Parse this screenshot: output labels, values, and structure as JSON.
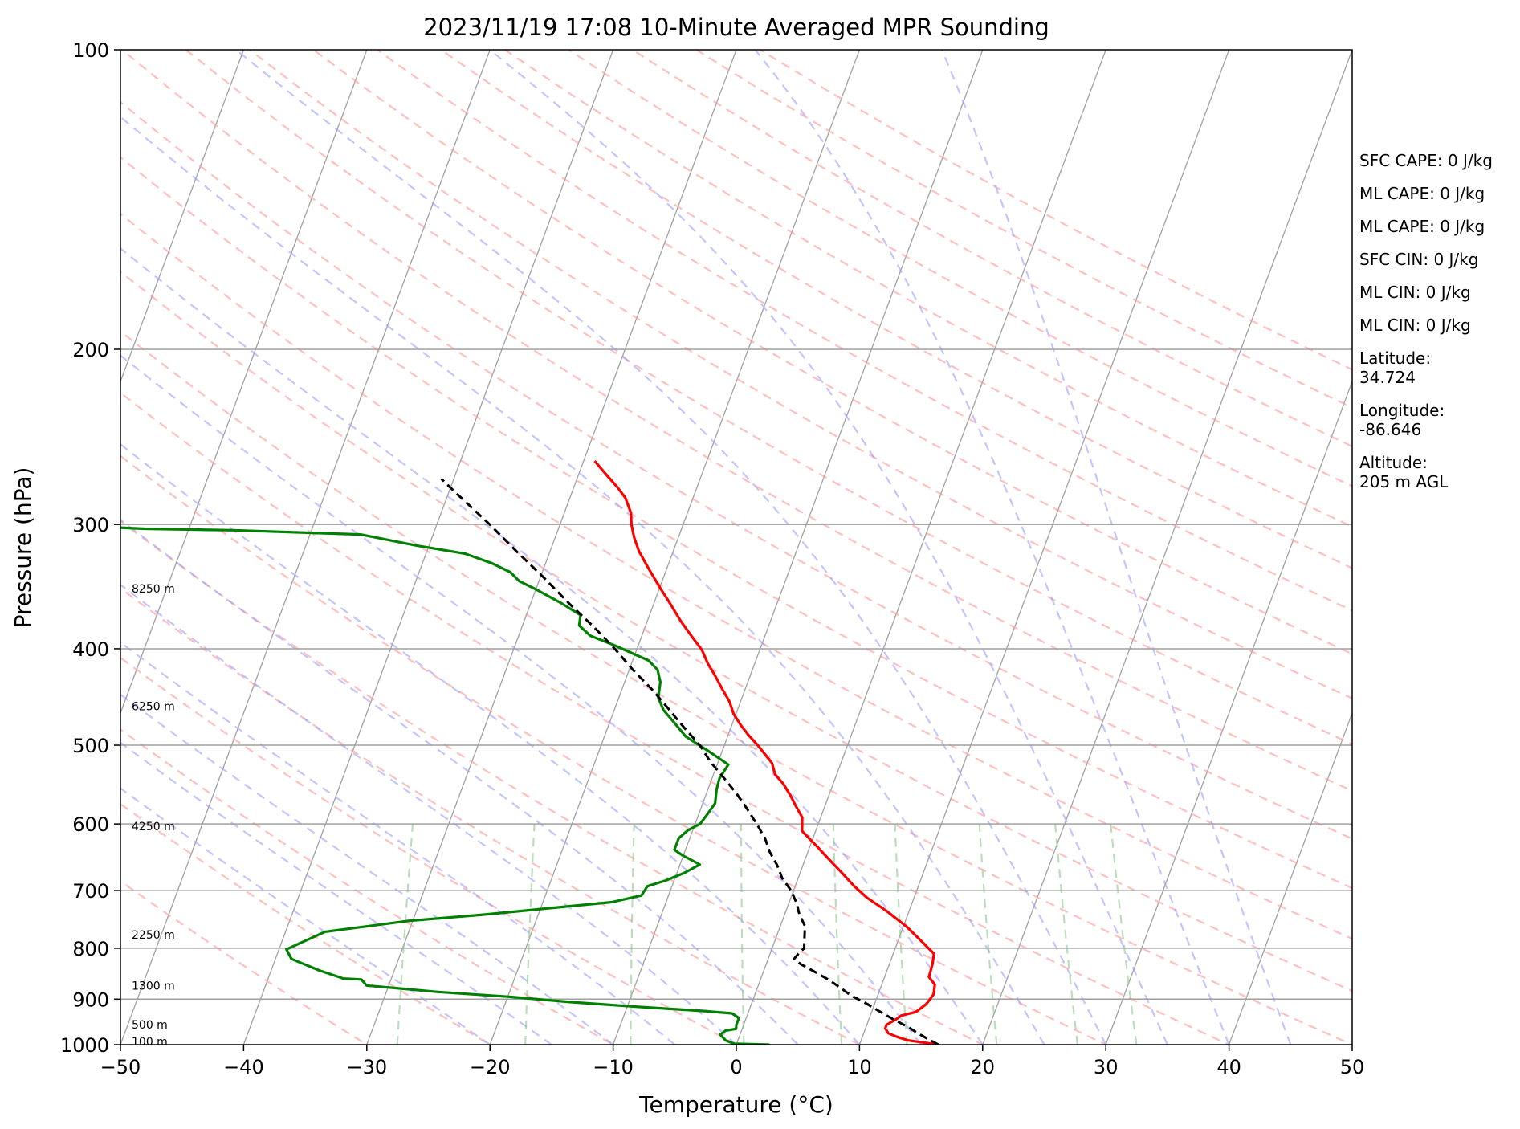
{
  "chart_data": {
    "type": "line",
    "title": "2023/11/19 17:08 10-Minute Averaged MPR Sounding",
    "xlabel": "Temperature (°C)",
    "ylabel": "Pressure (hPa)",
    "xlim": [
      -50,
      50
    ],
    "ylim": [
      1000,
      100
    ],
    "y_scale": "log",
    "x_ticks": [
      "−50",
      "−40",
      "−30",
      "−20",
      "−10",
      "0",
      "10",
      "20",
      "30",
      "40",
      "50"
    ],
    "y_ticks": [
      "1000",
      "900",
      "800",
      "700",
      "600",
      "500",
      "400",
      "300",
      "200",
      "100"
    ],
    "grid": true,
    "skew": "skew-T log-P",
    "series": [
      {
        "kind": "temperature",
        "color": "#ff0000",
        "points": [
          [
            16.4,
            1000
          ],
          [
            13.8,
            990
          ],
          [
            12.8,
            982
          ],
          [
            12.0,
            974
          ],
          [
            11.6,
            963
          ],
          [
            11.6,
            955
          ],
          [
            12.2,
            943
          ],
          [
            12.5,
            935
          ],
          [
            13.6,
            927
          ],
          [
            14.2,
            910
          ],
          [
            14.5,
            890
          ],
          [
            14.3,
            870
          ],
          [
            13.6,
            855
          ],
          [
            13.5,
            830
          ],
          [
            13.3,
            810
          ],
          [
            12.1,
            790
          ],
          [
            10.2,
            760
          ],
          [
            8.1,
            733
          ],
          [
            6.2,
            712
          ],
          [
            4.8,
            693
          ],
          [
            3.4,
            672
          ],
          [
            1.7,
            648
          ],
          [
            0.5,
            631
          ],
          [
            -1.1,
            610
          ],
          [
            -1.5,
            591
          ],
          [
            -2.4,
            575
          ],
          [
            -3.1,
            562
          ],
          [
            -4.1,
            546
          ],
          [
            -5.0,
            535
          ],
          [
            -5.6,
            521
          ],
          [
            -6.4,
            511
          ],
          [
            -7.3,
            500
          ],
          [
            -8.3,
            489
          ],
          [
            -9.3,
            477
          ],
          [
            -10.2,
            465
          ],
          [
            -10.9,
            452
          ],
          [
            -11.8,
            440
          ],
          [
            -12.9,
            425
          ],
          [
            -13.8,
            414
          ],
          [
            -14.7,
            401
          ],
          [
            -15.9,
            389
          ],
          [
            -17.3,
            375
          ],
          [
            -18.6,
            361
          ],
          [
            -20.0,
            347
          ],
          [
            -21.4,
            333
          ],
          [
            -22.8,
            319
          ],
          [
            -23.6,
            309
          ],
          [
            -24.2,
            300
          ],
          [
            -24.6,
            292
          ],
          [
            -25.5,
            282
          ],
          [
            -26.5,
            275
          ],
          [
            -27.8,
            267
          ],
          [
            -29.1,
            259
          ]
        ]
      },
      {
        "kind": "dewpoint",
        "color": "#008000",
        "points": [
          [
            2.7,
            1000
          ],
          [
            -0.2,
            998
          ],
          [
            -1.0,
            990
          ],
          [
            -1.6,
            977
          ],
          [
            -1.3,
            968
          ],
          [
            -0.5,
            964
          ],
          [
            -0.6,
            955
          ],
          [
            -0.6,
            940
          ],
          [
            -1.3,
            930
          ],
          [
            -3.7,
            925
          ],
          [
            -8.6,
            917
          ],
          [
            -14.8,
            906
          ],
          [
            -19.9,
            895
          ],
          [
            -25.8,
            885
          ],
          [
            -31.8,
            872
          ],
          [
            -32.4,
            860
          ],
          [
            -33.9,
            858
          ],
          [
            -36.1,
            842
          ],
          [
            -38.7,
            820
          ],
          [
            -39.4,
            802
          ],
          [
            -36.8,
            770
          ],
          [
            -30.4,
            751
          ],
          [
            -24.4,
            740
          ],
          [
            -19.2,
            729
          ],
          [
            -14.4,
            719
          ],
          [
            -12.2,
            708
          ],
          [
            -12.0,
            693
          ],
          [
            -10.7,
            684
          ],
          [
            -9.4,
            672
          ],
          [
            -8.4,
            659
          ],
          [
            -10.1,
            645
          ],
          [
            -10.9,
            637
          ],
          [
            -10.9,
            620
          ],
          [
            -10.4,
            609
          ],
          [
            -9.6,
            600
          ],
          [
            -9.3,
            587
          ],
          [
            -9.0,
            572
          ],
          [
            -9.3,
            554
          ],
          [
            -9.4,
            540
          ],
          [
            -9.1,
            523
          ],
          [
            -11.1,
            507
          ],
          [
            -13.4,
            490
          ],
          [
            -14.8,
            474
          ],
          [
            -16.0,
            461
          ],
          [
            -16.8,
            448
          ],
          [
            -17.1,
            432
          ],
          [
            -17.7,
            420
          ],
          [
            -18.7,
            411
          ],
          [
            -21.9,
            397
          ],
          [
            -24.2,
            388
          ],
          [
            -25.4,
            379
          ],
          [
            -25.6,
            370
          ],
          [
            -27.5,
            360
          ],
          [
            -29.9,
            349
          ],
          [
            -31.6,
            342
          ],
          [
            -32.6,
            335
          ],
          [
            -34.4,
            328
          ],
          [
            -36.8,
            321
          ],
          [
            -41.0,
            315
          ],
          [
            -45.9,
            307
          ],
          [
            -56.4,
            304
          ],
          [
            -63.6,
            303
          ],
          [
            -66.2,
            302
          ],
          [
            -74.3,
            301
          ],
          [
            -80.2,
            300
          ]
        ]
      },
      {
        "kind": "parcel",
        "color": "#000000",
        "points": [
          [
            16.4,
            1000
          ],
          [
            14.7,
            978
          ],
          [
            13.4,
            960
          ],
          [
            11.9,
            942
          ],
          [
            10.4,
            923
          ],
          [
            9.4,
            910
          ],
          [
            7.8,
            892
          ],
          [
            6.7,
            876
          ],
          [
            5.5,
            860
          ],
          [
            4.0,
            843
          ],
          [
            2.8,
            830
          ],
          [
            2.1,
            820
          ],
          [
            2.3,
            810
          ],
          [
            2.6,
            800
          ],
          [
            2.3,
            780
          ],
          [
            2.0,
            760
          ],
          [
            1.2,
            740
          ],
          [
            0.6,
            720
          ],
          [
            -0.2,
            700
          ],
          [
            -1.3,
            680
          ],
          [
            -2.1,
            660
          ],
          [
            -3.1,
            640
          ],
          [
            -3.9,
            620
          ],
          [
            -5.0,
            600
          ],
          [
            -6.2,
            580
          ],
          [
            -7.5,
            560
          ],
          [
            -9.0,
            540
          ],
          [
            -10.6,
            520
          ],
          [
            -12.0,
            500
          ],
          [
            -13.8,
            480
          ],
          [
            -15.6,
            460
          ],
          [
            -17.5,
            440
          ],
          [
            -19.7,
            420
          ],
          [
            -21.8,
            400
          ],
          [
            -24.2,
            380
          ],
          [
            -26.9,
            360
          ],
          [
            -29.6,
            340
          ],
          [
            -32.6,
            320
          ],
          [
            -35.7,
            300
          ],
          [
            -39.2,
            280
          ],
          [
            -41.0,
            270
          ]
        ]
      }
    ],
    "altitude_labels": [
      "8250 m",
      "6250 m",
      "4250 m",
      "2250 m",
      "1300 m",
      "500 m",
      "100 m"
    ],
    "reference_lines": {
      "isotherms": "#808080",
      "dry_adiabats": "#ff9c9c",
      "moist_adiabats": "#9c9cff",
      "mixing_ratio": "#8cc88c"
    }
  },
  "side_panel": [
    "SFC CAPE: 0 J/kg",
    "ML CAPE: 0 J/kg",
    "ML CAPE: 0 J/kg",
    "SFC CIN: 0 J/kg",
    "ML CIN: 0 J/kg",
    "ML CIN: 0 J/kg",
    "Latitude:\n34.724",
    "Longitude:\n-86.646",
    "Altitude:\n205 m AGL"
  ]
}
